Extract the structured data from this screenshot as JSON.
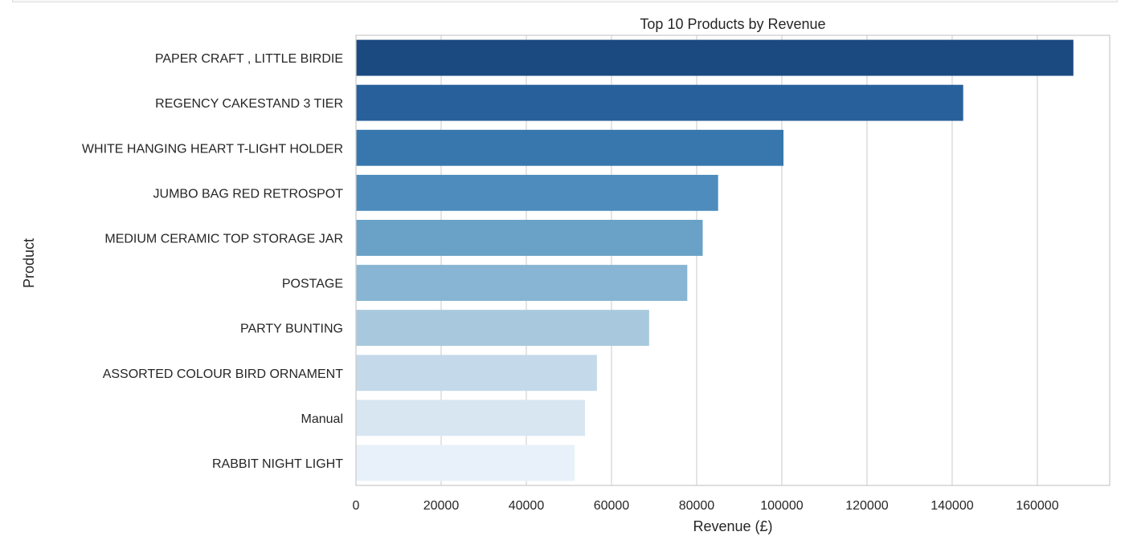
{
  "chart_data": {
    "type": "bar",
    "orientation": "horizontal",
    "title": "Top 10 Products by Revenue",
    "xlabel": "Revenue (£)",
    "ylabel": "Product",
    "xlim": [
      0,
      177000
    ],
    "grid": "vertical",
    "x_ticks": [
      "0",
      "20000",
      "40000",
      "60000",
      "80000",
      "100000",
      "120000",
      "140000",
      "160000"
    ],
    "x_tick_values": [
      0,
      20000,
      40000,
      60000,
      80000,
      100000,
      120000,
      140000,
      160000
    ],
    "categories": [
      "PAPER CRAFT , LITTLE BIRDIE",
      "REGENCY CAKESTAND 3 TIER",
      "WHITE HANGING HEART T-LIGHT HOLDER",
      "JUMBO BAG RED RETROSPOT",
      "MEDIUM CERAMIC TOP STORAGE JAR",
      "POSTAGE",
      "PARTY BUNTING",
      "ASSORTED COLOUR BIRD ORNAMENT",
      "Manual",
      "RABBIT NIGHT LIGHT"
    ],
    "values": [
      168470,
      142590,
      100390,
      85040,
      81420,
      77800,
      68840,
      56580,
      53780,
      51350
    ],
    "colors": [
      "#1b4a80",
      "#27609a",
      "#3777ad",
      "#4d8cbd",
      "#69a1c7",
      "#87b5d3",
      "#a8c9dd",
      "#c4d9ea",
      "#d8e6f2",
      "#e8f1f9"
    ]
  }
}
